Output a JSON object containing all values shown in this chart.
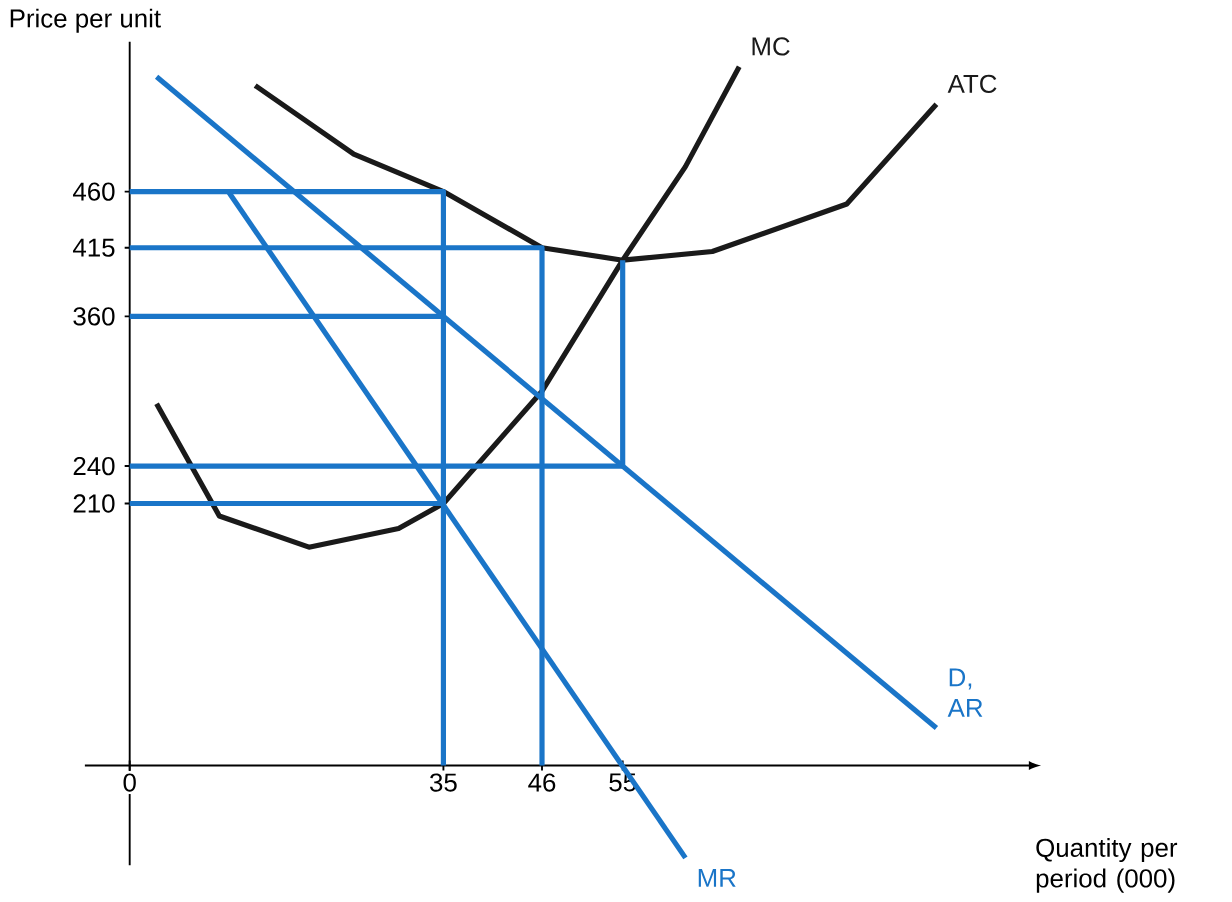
{
  "chart_data": {
    "type": "line",
    "xlabel": "Quantity per period (000)",
    "ylabel": "Price per unit",
    "xlim": [
      -5,
      100
    ],
    "ylim": [
      -80,
      580
    ],
    "xticks": [
      0,
      35,
      46,
      55
    ],
    "yticks": [
      210,
      240,
      360,
      415,
      460
    ],
    "legend": false,
    "grid": false,
    "marker": "none",
    "series": [
      {
        "name": "MC",
        "color": "#1a1a1a",
        "x": [
          3,
          10,
          20,
          30,
          35,
          46,
          55,
          62,
          68
        ],
        "values": [
          290,
          200,
          175,
          190,
          210,
          300,
          405,
          480,
          560
        ]
      },
      {
        "name": "ATC",
        "color": "#1a1a1a",
        "x": [
          14,
          25,
          35,
          46,
          55,
          65,
          80,
          90
        ],
        "values": [
          545,
          490,
          460,
          415,
          405,
          412,
          450,
          530
        ]
      },
      {
        "name": "D, AR",
        "color": "#1a75c8",
        "x": [
          3,
          90
        ],
        "values": [
          552,
          30
        ]
      },
      {
        "name": "MR",
        "color": "#1a75c8",
        "x": [
          11,
          62
        ],
        "values": [
          460,
          -74
        ]
      },
      {
        "color": "#1a75c8",
        "x": [
          0,
          35,
          35
        ],
        "values": [
          460,
          460,
          0
        ]
      },
      {
        "color": "#1a75c8",
        "x": [
          0,
          46,
          46
        ],
        "values": [
          415,
          415,
          0
        ]
      },
      {
        "color": "#1a75c8",
        "x": [
          0,
          35
        ],
        "values": [
          360,
          360
        ]
      },
      {
        "color": "#1a75c8",
        "x": [
          0,
          55,
          55
        ],
        "values": [
          240,
          240,
          405
        ]
      },
      {
        "color": "#1a75c8",
        "x": [
          0,
          35
        ],
        "values": [
          210,
          210
        ]
      }
    ]
  }
}
